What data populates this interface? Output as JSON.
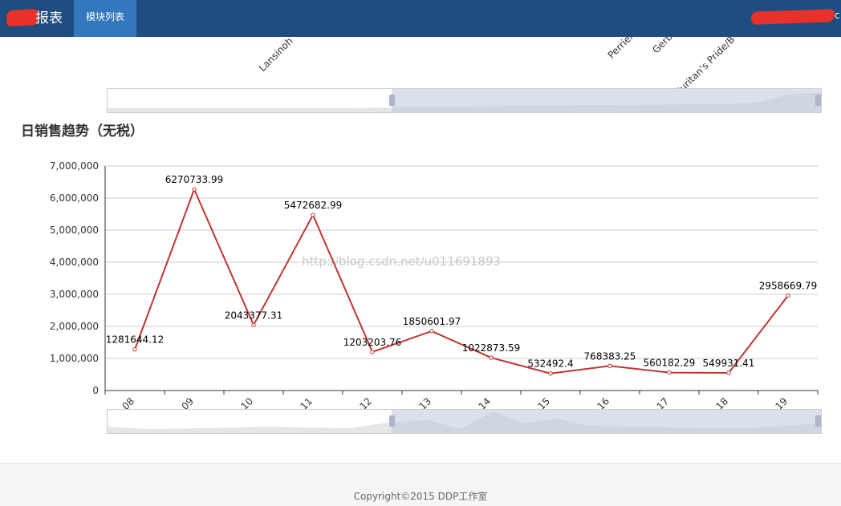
{
  "header": {
    "brand_text": "报表",
    "active_nav": "模块列表",
    "user_suffix": "c"
  },
  "top_chart": {
    "visible_labels": [
      "Lansinoh",
      "Perrier",
      "Gerber",
      "Puritan's Pride/B"
    ]
  },
  "chart_data": {
    "type": "line",
    "title": "日销售趋势（无税）",
    "categories": [
      "09-08",
      "09-09",
      "09-10",
      "09-11",
      "09-12",
      "09-13",
      "09-14",
      "09-15",
      "09-16",
      "09-17",
      "09-18",
      "09-19"
    ],
    "series": [
      {
        "values": [
          1281644.12,
          6270733.99,
          2043377.31,
          5472682.99,
          1203203.76,
          1850601.97,
          1022873.59,
          532492.4,
          768383.25,
          560182.29,
          549931.41,
          2958669.79
        ],
        "color": "#c23531"
      }
    ],
    "ylim": [
      0,
      7000000
    ],
    "yticks": [
      "0",
      "1,000,000",
      "2,000,000",
      "3,000,000",
      "4,000,000",
      "5,000,000",
      "6,000,000",
      "7,000,000"
    ],
    "grid": true,
    "data_labels": [
      "1281644.12",
      "6270733.99",
      "2043377.31",
      "5472682.99",
      "1203203.76",
      "1850601.97",
      "1022873.59",
      "532492.4",
      "768383.25",
      "560182.29",
      "549931.41",
      "2958669.79"
    ],
    "datazoom": {
      "start_percent": 40,
      "end_percent": 100
    }
  },
  "watermark": "http://blog.csdn.net/u011691893",
  "footer": {
    "copyright": "Copyright©2015 DDP工作室"
  }
}
